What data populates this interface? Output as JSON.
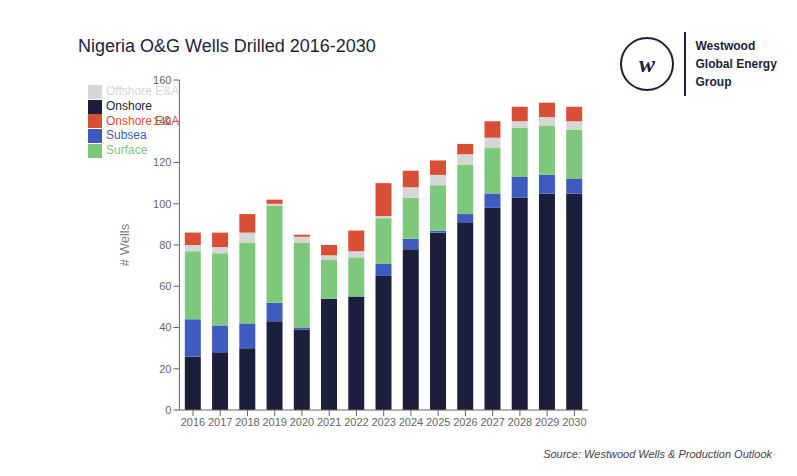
{
  "chart_data": {
    "type": "bar",
    "stacked": true,
    "title": "Nigeria O&G Wells Drilled 2016-2030",
    "ylabel": "# Wells",
    "categories": [
      "2016",
      "2017",
      "2018",
      "2019",
      "2020",
      "2021",
      "2022",
      "2023",
      "2024",
      "2025",
      "2026",
      "2027",
      "2028",
      "2029",
      "2030"
    ],
    "series": [
      {
        "name": "Onshore",
        "color": "#1c1f3b",
        "values": [
          26,
          28,
          30,
          43,
          39,
          54,
          55,
          65,
          78,
          86,
          91,
          98,
          103,
          105,
          105
        ]
      },
      {
        "name": "Subsea",
        "color": "#3f5bbf",
        "values": [
          18,
          13,
          12,
          9,
          1,
          0,
          0,
          6,
          5,
          1,
          4,
          7,
          10,
          9,
          7
        ]
      },
      {
        "name": "Surface",
        "color": "#7dc87b",
        "values": [
          33,
          35,
          39,
          47,
          41,
          19,
          19,
          22,
          20,
          22,
          24,
          22,
          24,
          24,
          24
        ]
      },
      {
        "name": "Offshore E&A",
        "color": "#d6d6d6",
        "values": [
          3,
          3,
          5,
          1,
          3,
          2,
          3,
          1,
          5,
          5,
          5,
          5,
          3,
          4,
          4
        ]
      },
      {
        "name": "Onshore E&A",
        "color": "#d94f35",
        "values": [
          6,
          7,
          9,
          2,
          1,
          5,
          10,
          16,
          8,
          7,
          5,
          8,
          7,
          7,
          7
        ]
      }
    ],
    "ylim": [
      0,
      160
    ],
    "yticks": [
      0,
      20,
      40,
      60,
      80,
      100,
      120,
      140,
      160
    ],
    "grid": false,
    "legend": "upper left",
    "annotations": [
      "Source: Westwood Wells & Production Outlook",
      "w",
      "Westwood",
      "Global Energy",
      "Group"
    ]
  }
}
